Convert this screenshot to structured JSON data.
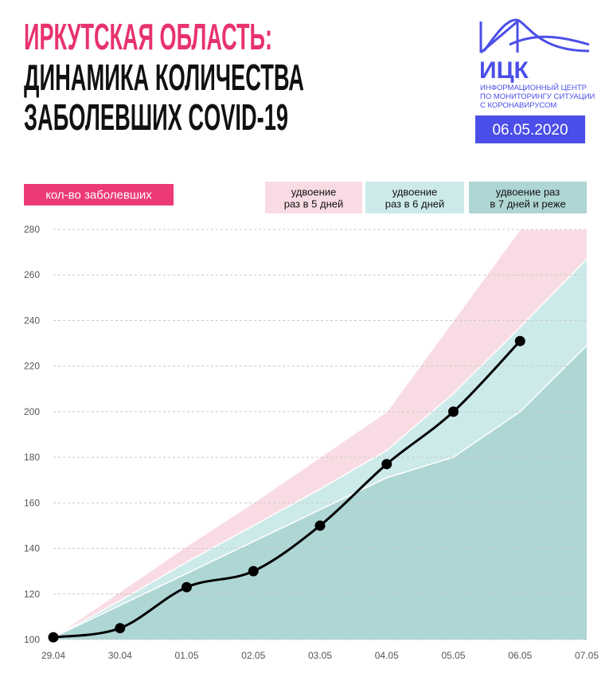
{
  "chart_data": {
    "type": "line",
    "title": [
      "ИРКУТСКАЯ ОБЛАСТЬ:",
      "ДИНАМИКА КОЛИЧЕСТВА",
      "ЗАБОЛЕВШИХ COVID-19"
    ],
    "title_colors": [
      "#e8336d",
      "#111111",
      "#111111"
    ],
    "logo": {
      "name": "ИЦК",
      "subtitle": [
        "ИНФОРМАЦИОННЫЙ ЦЕНТР",
        "ПО МОНИТОРИНГУ СИТУАЦИИ",
        "С КОРОНАВИРУСОМ"
      ],
      "color": "#4b4ee8"
    },
    "date": "06.05.2020",
    "categories": [
      "29.04",
      "30.04",
      "01.05",
      "02.05",
      "03.05",
      "04.05",
      "05.05",
      "06.05",
      "07.05"
    ],
    "series": [
      {
        "name": [
          "кол-во заболевших"
        ],
        "type": "line",
        "color": "#000000",
        "legend_color": "#ec3a76",
        "values": [
          101,
          105,
          123,
          130,
          150,
          177,
          200,
          231,
          null
        ]
      },
      {
        "name": [
          "удвоение",
          "раз в 5 дней"
        ],
        "type": "area",
        "color": "#f9dce3",
        "values": [
          101,
          121,
          141,
          160,
          180,
          200,
          240,
          280,
          280
        ]
      },
      {
        "name": [
          "удвоение",
          "раз в 6 дней"
        ],
        "type": "area",
        "color": "#cdeaea",
        "values": [
          101,
          117,
          134,
          150,
          166,
          183,
          208,
          237,
          267
        ]
      },
      {
        "name": [
          "удвоение раз",
          "в 7 дней и реже"
        ],
        "type": "area",
        "color": "#aed6d5",
        "values": [
          101,
          115,
          129,
          143,
          157,
          171,
          180,
          200,
          229
        ]
      }
    ],
    "ylim": [
      100,
      280
    ],
    "yticks": [
      100,
      120,
      140,
      160,
      180,
      200,
      220,
      240,
      260,
      280
    ],
    "grid": true
  }
}
